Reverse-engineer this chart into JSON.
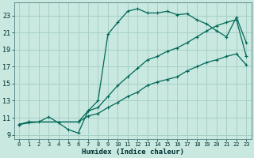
{
  "xlabel": "Humidex (Indice chaleur)",
  "bg_color": "#c8e8e0",
  "grid_color": "#a8d0c8",
  "line_color": "#006858",
  "xlim": [
    -0.5,
    23.5
  ],
  "ylim": [
    8.5,
    24.5
  ],
  "xticks": [
    0,
    1,
    2,
    3,
    4,
    5,
    6,
    7,
    8,
    9,
    10,
    11,
    12,
    13,
    14,
    15,
    16,
    17,
    18,
    19,
    20,
    21,
    22,
    23
  ],
  "yticks": [
    9,
    11,
    13,
    15,
    17,
    19,
    21,
    23
  ],
  "curve1_x": [
    0,
    1,
    2,
    3,
    4,
    5,
    6,
    7,
    8,
    9,
    10,
    11,
    12,
    13,
    14,
    15,
    16,
    17,
    18,
    19,
    20,
    21,
    22,
    23
  ],
  "curve1_y": [
    10.2,
    10.4,
    10.5,
    11.1,
    10.4,
    9.6,
    9.2,
    11.8,
    13.0,
    20.8,
    22.2,
    23.5,
    23.8,
    23.3,
    23.3,
    23.5,
    23.1,
    23.2,
    22.5,
    22.0,
    21.2,
    20.5,
    22.8,
    19.8
  ],
  "curve2_x": [
    0,
    1,
    6,
    7,
    8,
    9,
    10,
    11,
    12,
    13,
    14,
    15,
    16,
    17,
    18,
    19,
    20,
    21,
    22,
    23
  ],
  "curve2_y": [
    10.2,
    10.5,
    10.5,
    11.8,
    12.2,
    13.5,
    14.8,
    15.8,
    16.8,
    17.8,
    18.2,
    18.8,
    19.2,
    19.8,
    20.5,
    21.2,
    21.8,
    22.2,
    22.5,
    18.2
  ],
  "curve3_x": [
    0,
    1,
    6,
    7,
    8,
    9,
    10,
    11,
    12,
    13,
    14,
    15,
    16,
    17,
    18,
    19,
    20,
    21,
    22,
    23
  ],
  "curve3_y": [
    10.2,
    10.5,
    10.5,
    11.2,
    11.5,
    12.2,
    12.8,
    13.5,
    14.0,
    14.8,
    15.2,
    15.5,
    15.8,
    16.5,
    17.0,
    17.5,
    17.8,
    18.2,
    18.5,
    17.2
  ]
}
